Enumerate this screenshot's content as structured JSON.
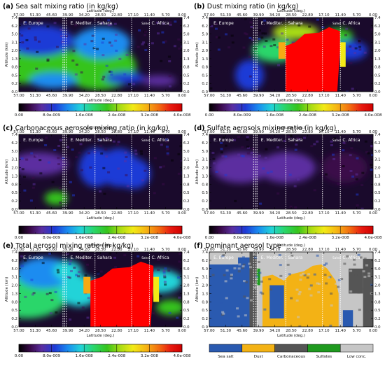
{
  "chart_data": [
    {
      "panel": "(a)",
      "type": "heatmap",
      "title": "Sea salt mixing ratio (in kg/kg)",
      "x_ticks": [
        "57.00",
        "51.30",
        "45.60",
        "39.90",
        "34.20",
        "28.50",
        "22.80",
        "17.10",
        "11.40",
        "5.70",
        "0.00"
      ],
      "y_ticks": [
        "0.0",
        "0.2",
        "0.5",
        "0.8",
        "1.3",
        "2.0",
        "3.1",
        "5.0",
        "6.2",
        "7.4"
      ],
      "xlabel": "Latitude (deg.)",
      "ylabel": "Altitude (km)",
      "xlim": [
        57.0,
        0.0
      ],
      "regions": [
        "E. Europe",
        "E. Mediter.",
        "Sahara",
        "Sahel",
        "C. Africa"
      ],
      "colorbar_ticks": [
        "0.00",
        "8.0e-009",
        "1.6e-008",
        "2.4e-008",
        "3.2e-008",
        "4.0e-008"
      ],
      "colorbar_range": [
        0,
        4e-08
      ],
      "hotspots": [
        {
          "lat": 54.5,
          "alt_km": 0.5,
          "level": 0.55
        },
        {
          "lat": 55.5,
          "alt_km": 1.0,
          "level": 0.45
        },
        {
          "lat": 28.5,
          "alt_km": 0.5,
          "level": 0.55
        },
        {
          "lat": 29.5,
          "alt_km": 1.3,
          "level": 0.5
        }
      ]
    },
    {
      "panel": "(b)",
      "type": "heatmap",
      "title": "Dust mixing ratio (in kg/kg)",
      "x_ticks": [
        "57.00",
        "51.30",
        "45.60",
        "39.90",
        "34.20",
        "28.50",
        "22.80",
        "17.10",
        "11.40",
        "5.70",
        "0.00"
      ],
      "y_ticks": [
        "0.0",
        "0.2",
        "0.5",
        "0.8",
        "1.3",
        "2.0",
        "3.1",
        "5.0",
        "6.2",
        "7.4"
      ],
      "xlabel": "Latitude (deg.)",
      "ylabel": "Altitude (km)",
      "xlim": [
        57.0,
        0.0
      ],
      "regions": [
        "E. Europe",
        "E. Mediter.",
        "Sahara",
        "Sahel",
        "C. Africa"
      ],
      "colorbar_ticks": [
        "0.00",
        "8.0e-009",
        "1.6e-008",
        "2.4e-008",
        "3.2e-008",
        "4.0e-008"
      ],
      "colorbar_range": [
        0,
        4e-08
      ],
      "saturated_region": {
        "lat_from": 30.5,
        "lat_to": 11.5,
        "alt_top_km": 5.0
      }
    },
    {
      "panel": "(c)",
      "type": "heatmap",
      "title": "Carbonaceous aerosols mixing ratio (in kg/kg)",
      "x_ticks": [
        "57.00",
        "51.30",
        "45.60",
        "39.90",
        "34.20",
        "28.50",
        "22.80",
        "17.10",
        "11.40",
        "5.70",
        "0.00"
      ],
      "y_ticks": [
        "0.0",
        "0.2",
        "0.5",
        "0.8",
        "1.3",
        "2.0",
        "3.1",
        "5.0",
        "6.2",
        "7.4"
      ],
      "xlabel": "Latitude (deg.)",
      "ylabel": "Altitude (km)",
      "xlim": [
        57.0,
        0.0
      ],
      "regions": [
        "E. Europe",
        "E. Mediter.",
        "Sahara",
        "Sahel",
        "C. Africa"
      ],
      "colorbar_ticks": [
        "0.00",
        "8.0e-009",
        "1.6e-008",
        "2.4e-008",
        "3.2e-008",
        "4.0e-008"
      ],
      "colorbar_range": [
        0,
        4e-08
      ]
    },
    {
      "panel": "(d)",
      "type": "heatmap",
      "title": "Sulfate aerosols mixing ratio (in kg/kg)",
      "x_ticks": [
        "57.00",
        "51.30",
        "45.60",
        "39.90",
        "34.20",
        "28.50",
        "22.80",
        "17.10",
        "11.40",
        "5.70",
        "0.00"
      ],
      "y_ticks": [
        "0.0",
        "0.2",
        "0.5",
        "0.8",
        "1.3",
        "2.0",
        "3.1",
        "5.0",
        "6.2",
        "7.4"
      ],
      "xlabel": "Latitude (deg.)",
      "ylabel": "Altitude (km)",
      "xlim": [
        57.0,
        0.0
      ],
      "regions": [
        "E. Europe",
        "E. Mediter.",
        "Sahara",
        "Sahel",
        "C. Africa"
      ],
      "colorbar_ticks": [
        "0.00",
        "8.0e-009",
        "1.6e-008",
        "2.4e-008",
        "3.2e-008",
        "4.0e-008"
      ],
      "colorbar_range": [
        0,
        4e-08
      ]
    },
    {
      "panel": "(e)",
      "type": "heatmap",
      "title": "Total aerosol mixing ratio (in kg/kg)",
      "x_ticks": [
        "57.00",
        "51.30",
        "45.60",
        "39.90",
        "34.20",
        "28.50",
        "22.80",
        "17.10",
        "11.40",
        "5.70",
        "0.00"
      ],
      "y_ticks": [
        "0.0",
        "0.2",
        "0.5",
        "0.8",
        "1.3",
        "2.0",
        "3.1",
        "5.0",
        "6.2",
        "7.4"
      ],
      "xlabel": "Latitude (deg.)",
      "ylabel": "Altitude (km)",
      "xlim": [
        57.0,
        0.0
      ],
      "regions": [
        "E. Europe",
        "E. Mediter.",
        "Sahara",
        "Sahel",
        "C. Africa"
      ],
      "colorbar_ticks": [
        "0.00",
        "8.0e-009",
        "1.6e-008",
        "2.4e-008",
        "3.2e-008",
        "4.0e-008"
      ],
      "colorbar_range": [
        0,
        4e-08
      ],
      "saturated_region": {
        "lat_from": 32.0,
        "lat_to": 10.0,
        "alt_top_km": 5.0
      }
    },
    {
      "panel": "(f)",
      "type": "heatmap",
      "title": "Dominant aerosol type",
      "x_ticks": [
        "57.00",
        "51.30",
        "45.60",
        "39.90",
        "34.20",
        "28.50",
        "22.80",
        "17.10",
        "11.40",
        "5.70",
        "0.00"
      ],
      "y_ticks": [
        "0.0",
        "0.2",
        "0.5",
        "0.8",
        "1.3",
        "2.0",
        "3.1",
        "5.0",
        "6.2",
        "7.4"
      ],
      "xlabel": "Latitude (deg.)",
      "ylabel": "Altitude (km)",
      "xlim": [
        57.0,
        0.0
      ],
      "regions": [
        "E. Europe",
        "E. Mediter.",
        "Sahara",
        "Sahel",
        "C. Africa"
      ],
      "categories": [
        "Sea salt",
        "Dust",
        "Carbonaceous",
        "Sulfates",
        "Low conc."
      ],
      "category_colors": [
        "#2a5ab0",
        "#f3b215",
        "#555555",
        "#1f9a1f",
        "#c6c6c6"
      ]
    }
  ],
  "colors": {
    "background": "#ffffff",
    "plot_bg_dark": "#1a0a2c",
    "saturated": "#ff0000",
    "divider": "#ffffff"
  }
}
